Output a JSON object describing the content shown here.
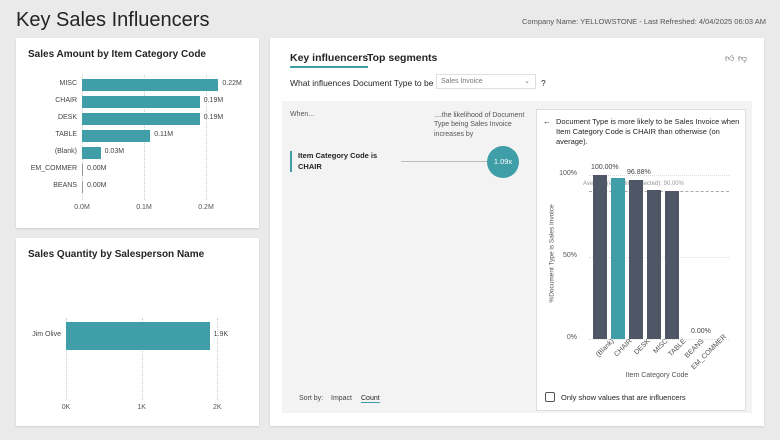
{
  "page": {
    "title": "Key Sales Influencers",
    "meta": "Company Name: YELLOWSTONE - Last Refreshed: 4/04/2025 06:03 AM"
  },
  "chart_data": [
    {
      "type": "bar",
      "title": "Sales Amount by Item Category Code",
      "categories": [
        "MISC",
        "CHAIR",
        "DESK",
        "TABLE",
        "(Blank)",
        "EM_COMMER",
        "BEANS"
      ],
      "values": [
        0.22,
        0.19,
        0.19,
        0.11,
        0.03,
        0.0,
        0.0
      ],
      "data_labels": [
        "0.22M",
        "0.19M",
        "0.19M",
        "0.11M",
        "0.03M",
        "0.00M",
        "0.00M"
      ],
      "xticks": [
        "0.0M",
        "0.1M",
        "0.2M"
      ],
      "xlim": [
        0,
        0.25
      ],
      "color": "#3f9ea7"
    },
    {
      "type": "bar",
      "title": "Sales Quantity by Salesperson Name",
      "categories": [
        "Jim Olive"
      ],
      "values": [
        1.9
      ],
      "data_labels": [
        "1.9K"
      ],
      "xticks": [
        "0K",
        "1K",
        "2K"
      ],
      "xlim": [
        0,
        2.05
      ],
      "color": "#3f9ea7"
    },
    {
      "type": "bar",
      "categories": [
        "(Blank)",
        "CHAIR",
        "DESK",
        "MISC",
        "TABLE",
        "BEANS",
        "EM_COMMER"
      ],
      "values": [
        100,
        97.9,
        96.88,
        91,
        90.5,
        0,
        null
      ],
      "data_labels": {
        "(Blank)": "100.00%",
        "DESK": "96.88%",
        "BEANS": "0.00%"
      },
      "highlight": "CHAIR",
      "yticks": [
        "0%",
        "50%",
        "100%"
      ],
      "ylim": [
        0,
        100
      ],
      "ylabel": "%Document Type is Sales Invoice",
      "xlabel": "Item Category Code",
      "reference_line": {
        "label": "Average (excluding selected): 90.00%",
        "value": 90
      },
      "colors": {
        "bar": "#4f5766",
        "highlight": "#3f9ea7"
      }
    }
  ],
  "ki": {
    "tabs": [
      "Key influencers",
      "Top segments"
    ],
    "question": "What influences Document Type to be",
    "dropdown": "Sales Invoice",
    "help": "?",
    "when": "When...",
    "likelihood": "....the likelihood of Document Type being Sales Invoice increases by",
    "influencer": "Item Category Code is CHAIR",
    "multiplier": "1.09x",
    "sort_by": "Sort by:",
    "sort_options": [
      "Impact",
      "Count"
    ],
    "sort_selected": "Count",
    "detail_text": "Document Type is more likely to be Sales Invoice when Item Category Code is CHAIR than otherwise (on average).",
    "checkbox": "Only show values that are influencers",
    "back": "←"
  }
}
